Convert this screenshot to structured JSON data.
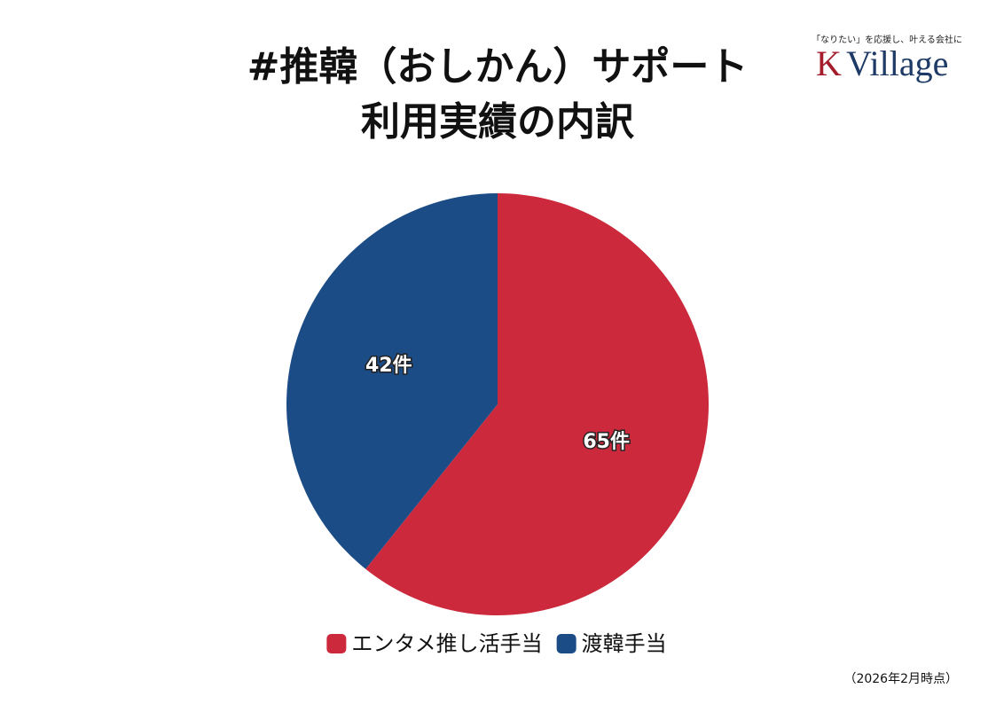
{
  "chart_data": {
    "type": "pie",
    "title": [
      "#推韓（おしかん）サポート",
      "利用実績の内訳"
    ],
    "categories": [
      "エンタメ推し活手当",
      "渡韓手当"
    ],
    "values": [
      65,
      42
    ],
    "value_labels": [
      "65件",
      "42件"
    ],
    "colors": [
      "#cc293c",
      "#1c4c86"
    ],
    "legend": "bottom",
    "note": "（2026年2月時点）"
  },
  "logo": {
    "tagline": "「なりたい」を応援し、叶える会社に",
    "mark": "K",
    "name": "Village",
    "mark_color": "#a51d2d",
    "name_color": "#1e3a66"
  }
}
